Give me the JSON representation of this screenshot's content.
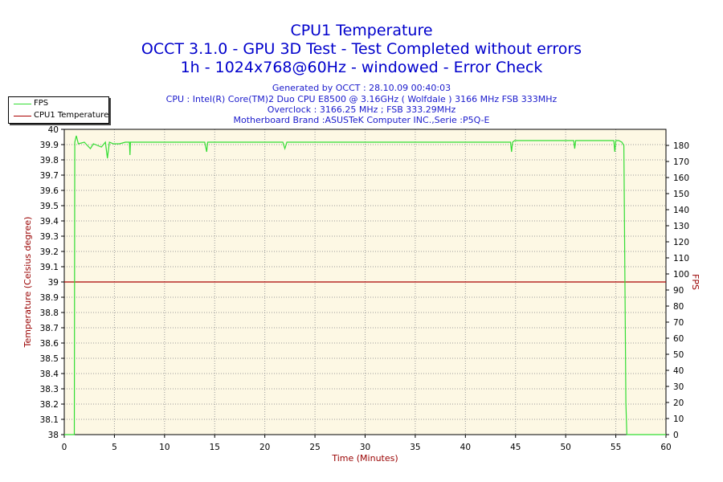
{
  "header": {
    "title": "CPU1 Temperature",
    "subtitle1": "OCCT 3.1.0 - GPU 3D Test - Test Completed without errors",
    "subtitle2": "1h - 1024x768@60Hz - windowed - Error Check",
    "info": [
      "Generated by OCCT : 28.10.09 00:40:03",
      "CPU : Intel(R) Core(TM)2 Duo CPU E8500 @ 3.16GHz ( Wolfdale ) 3166 MHz FSB 333MHz",
      "Overclock : 3166.25 MHz ; FSB 333.29MHz",
      "Motherboard Brand :ASUSTeK Computer INC.,Serie :P5Q-E"
    ]
  },
  "legend": [
    {
      "name": "FPS",
      "color": "#33dd33"
    },
    {
      "name": "CPU1 Temperature",
      "color": "#aa0000"
    }
  ],
  "chart_data": {
    "type": "line",
    "xlabel": "Time (Minutes)",
    "ylabel": "Temperature (Celsius degree)",
    "y2label": "FPS",
    "xlim": [
      0,
      60
    ],
    "ylim": [
      38,
      40
    ],
    "y2lim": [
      0,
      190
    ],
    "x_ticks": [
      "0",
      "5",
      "10",
      "15",
      "20",
      "25",
      "30",
      "35",
      "40",
      "45",
      "50",
      "55",
      "60"
    ],
    "y_ticks": [
      "38",
      "38.1",
      "38.2",
      "38.3",
      "38.4",
      "38.5",
      "38.6",
      "38.7",
      "38.8",
      "38.9",
      "39",
      "39.1",
      "39.2",
      "39.3",
      "39.4",
      "39.5",
      "39.6",
      "39.7",
      "39.8",
      "39.9",
      "40"
    ],
    "y2_ticks": [
      "0",
      "10",
      "20",
      "30",
      "40",
      "50",
      "60",
      "70",
      "80",
      "90",
      "100",
      "110",
      "120",
      "130",
      "140",
      "150",
      "160",
      "170",
      "180"
    ],
    "grid": true,
    "legend_position": "top-left",
    "background": "#fdf8e4",
    "series": [
      {
        "name": "CPU1 Temperature",
        "axis": "left",
        "color": "#aa0000",
        "x": [
          0,
          60
        ],
        "y": [
          39,
          39
        ]
      },
      {
        "name": "FPS",
        "axis": "right",
        "color": "#33dd33",
        "x": [
          0,
          1.0,
          1.05,
          1.2,
          1.4,
          2.0,
          2.3,
          2.6,
          2.9,
          3.3,
          3.7,
          4.1,
          4.3,
          4.5,
          4.9,
          5.5,
          6.1,
          6.5,
          6.55,
          6.6,
          7.5,
          10,
          14,
          14.2,
          14.3,
          14.5,
          18,
          21.8,
          22.0,
          22.2,
          25,
          30,
          35,
          40,
          44.5,
          44.6,
          44.7,
          44.9,
          47,
          50.8,
          50.9,
          51.0,
          53,
          54.8,
          54.9,
          55.0,
          55.3,
          55.6,
          55.8,
          56.0,
          56.1,
          60
        ],
        "y": [
          0,
          0,
          182,
          186,
          181,
          182,
          180,
          178,
          181,
          180,
          179,
          182,
          172,
          182,
          181,
          181,
          182,
          182,
          174,
          182,
          182,
          182,
          182,
          176,
          182,
          182,
          182,
          182,
          178,
          182,
          182,
          182,
          182,
          182,
          182,
          176,
          182,
          183,
          183,
          183,
          178,
          183,
          183,
          183,
          176,
          183,
          183,
          182,
          180,
          20,
          0,
          0
        ]
      }
    ]
  }
}
